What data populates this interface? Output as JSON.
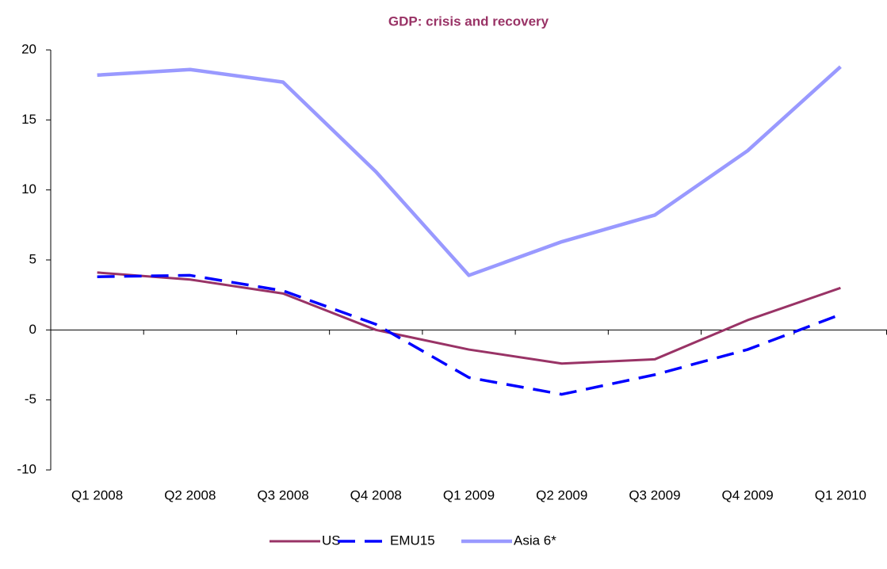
{
  "chart_data": {
    "type": "line",
    "title": "GDP: crisis and recovery",
    "categories": [
      "Q1 2008",
      "Q2 2008",
      "Q3 2008",
      "Q4 2008",
      "Q1 2009",
      "Q2 2009",
      "Q3 2009",
      "Q4 2009",
      "Q1 2010"
    ],
    "series": [
      {
        "name": "US",
        "color": "#993366",
        "dashed": false,
        "values": [
          4.1,
          3.6,
          2.6,
          0.0,
          -1.4,
          -2.4,
          -2.1,
          0.7,
          3.0
        ]
      },
      {
        "name": "EMU15",
        "color": "#0000ff",
        "dashed": true,
        "values": [
          3.8,
          3.9,
          2.8,
          0.4,
          -3.4,
          -4.6,
          -3.2,
          -1.4,
          1.1
        ]
      },
      {
        "name": "Asia 6*",
        "color": "#9999ff",
        "dashed": false,
        "values": [
          18.2,
          18.6,
          17.7,
          11.3,
          3.9,
          6.3,
          8.2,
          12.8,
          18.8
        ]
      }
    ],
    "ylim": [
      -10,
      20
    ],
    "yticks": [
      -10,
      -5,
      0,
      5,
      10,
      15,
      20
    ],
    "grid": false,
    "legend": "bottom"
  }
}
